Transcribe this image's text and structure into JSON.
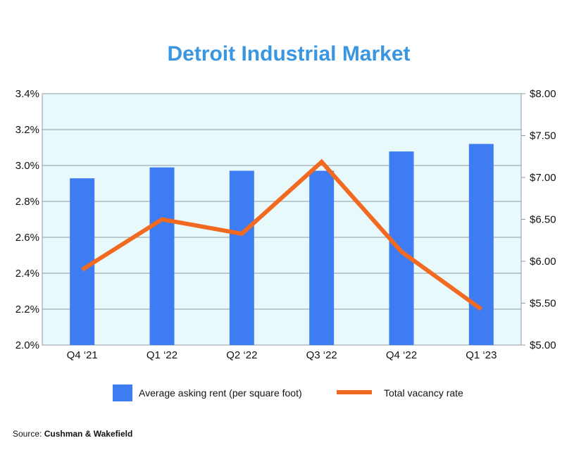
{
  "chart_data": {
    "type": "bar+line",
    "title": "Detroit Industrial Market",
    "categories": [
      "Q4 ‘21",
      "Q1 ‘22",
      "Q2 ‘22",
      "Q3 ‘22",
      "Q4 ‘22",
      "Q1 ‘23"
    ],
    "series": [
      {
        "name": "Average asking rent (per square foot)",
        "type": "bar",
        "axis": "right",
        "values": [
          6.99,
          7.12,
          7.08,
          7.08,
          7.31,
          7.4
        ]
      },
      {
        "name": "Total vacancy rate",
        "type": "line",
        "axis": "left",
        "values": [
          2.42,
          2.7,
          2.62,
          3.02,
          2.52,
          2.2
        ]
      }
    ],
    "left_axis": {
      "ylim": [
        2.0,
        3.4
      ],
      "ticks": [
        "2.0%",
        "2.2%",
        "2.4%",
        "2.6%",
        "2.8%",
        "3.0%",
        "3.2%",
        "3.4%"
      ]
    },
    "right_axis": {
      "ylim": [
        5.0,
        8.0
      ],
      "ticks": [
        "$5.00",
        "$5.50",
        "$6.00",
        "$6.50",
        "$7.00",
        "$7.50",
        "$8.00"
      ]
    },
    "grid": true,
    "legend_position": "bottom",
    "colors": {
      "bar": "#3d7cf2",
      "line": "#f26a21",
      "title": "#3a96e0",
      "plot_bg": "#e8f9fb",
      "grid": "#8f9ba3"
    }
  },
  "source": {
    "label": "Source: ",
    "name": "Cushman & Wakefield"
  }
}
